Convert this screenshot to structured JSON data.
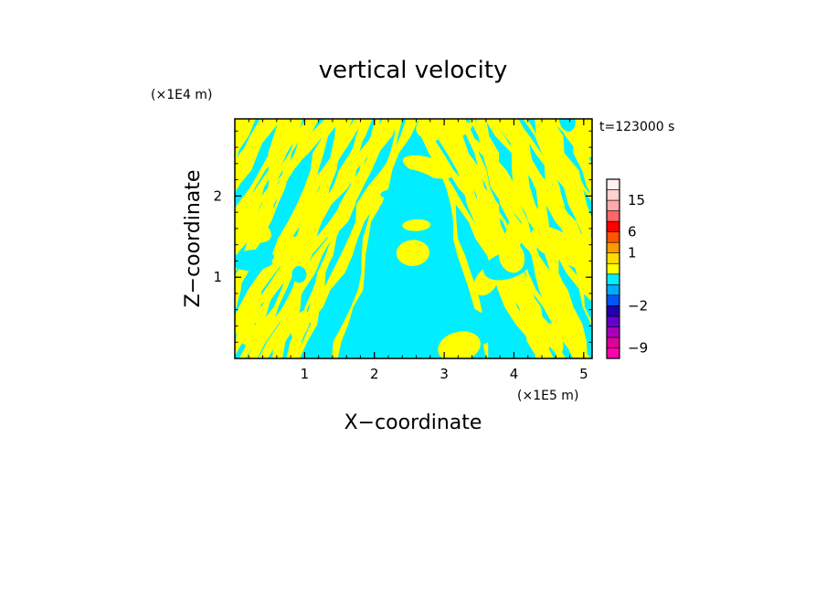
{
  "chart_data": {
    "type": "heatmap",
    "title": "vertical velocity",
    "xlabel": "X−coordinate",
    "ylabel": "Z−coordinate",
    "x_scale_label": "(×1E5 m)",
    "y_scale_label": "(×1E4 m)",
    "time_label": "t=123000 s",
    "xlim": [
      0,
      5.12
    ],
    "ylim": [
      0,
      2.95
    ],
    "x_ticks": [
      1,
      2,
      3,
      4,
      5
    ],
    "y_ticks": [
      1,
      2
    ],
    "colors": {
      "positive_field": "#ffff00",
      "negative_field": "#00eeff",
      "frame": "#000000"
    },
    "colorbar": {
      "levels": [
        -12,
        -9,
        -6,
        -4,
        -3,
        -2,
        -1,
        -0.5,
        0,
        0.5,
        1,
        3,
        6,
        9,
        12,
        15,
        18,
        24
      ],
      "colors": [
        "#ff00aa",
        "#dd0099",
        "#aa00bb",
        "#6600cc",
        "#2200aa",
        "#0055ff",
        "#00aaff",
        "#00eeff",
        "#ffff00",
        "#ffdd00",
        "#ff9900",
        "#ff5500",
        "#ff0000",
        "#ff6666",
        "#ffaaaa",
        "#ffd0d0",
        "#fff0f0"
      ],
      "tick_labels": [
        {
          "value": -9,
          "label": "−9"
        },
        {
          "value": -2,
          "label": "−2"
        },
        {
          "value": 1,
          "label": "1"
        },
        {
          "value": 6,
          "label": "6"
        },
        {
          "value": 15,
          "label": "15"
        }
      ]
    }
  }
}
